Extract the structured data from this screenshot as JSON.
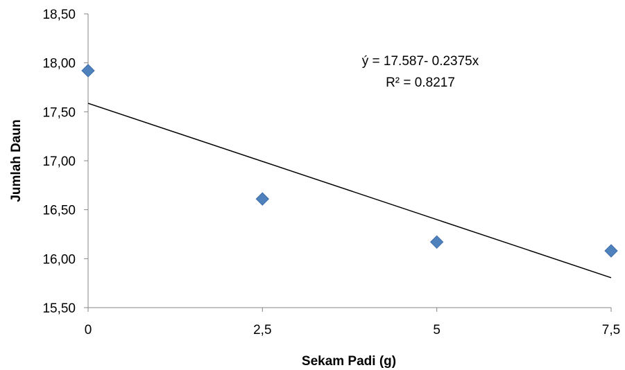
{
  "chart_data": {
    "type": "scatter",
    "xlabel": "Sekam Padi (g)",
    "ylabel": "Jumlah Daun",
    "x_ticks": [
      "0",
      "2,5",
      "5",
      "7,5"
    ],
    "x_tick_values": [
      0,
      2.5,
      5,
      7.5
    ],
    "xlim": [
      0,
      7.5
    ],
    "y_ticks": [
      "15,50",
      "16,00",
      "16,50",
      "17,00",
      "17,50",
      "18,00",
      "18,50"
    ],
    "y_tick_values": [
      15.5,
      16.0,
      16.5,
      17.0,
      17.5,
      18.0,
      18.5
    ],
    "ylim": [
      15.5,
      18.5
    ],
    "series": [
      {
        "x": [
          0,
          2.5,
          5,
          7.5
        ],
        "y": [
          17.92,
          16.61,
          16.17,
          16.08
        ],
        "color": "#4F81BD",
        "marker": "diamond"
      }
    ],
    "trendline": {
      "intercept": 17.587,
      "slope": -0.2375,
      "color": "#000000"
    },
    "equation_text": "ý =  17.587- 0.2375x",
    "r2_text": "R² = 0.8217",
    "grid": false,
    "legend": "none"
  }
}
